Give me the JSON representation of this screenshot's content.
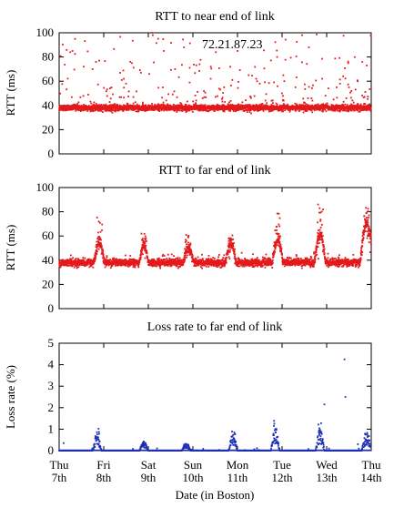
{
  "xlabel": "Date (in Boston)",
  "x_tick_labels": [
    {
      "day": "Thu",
      "date": "7th"
    },
    {
      "day": "Fri",
      "date": "8th"
    },
    {
      "day": "Sat",
      "date": "9th"
    },
    {
      "day": "Sun",
      "date": "10th"
    },
    {
      "day": "Mon",
      "date": "11th"
    },
    {
      "day": "Tue",
      "date": "12th"
    },
    {
      "day": "Wed",
      "date": "13th"
    },
    {
      "day": "Thu",
      "date": "14th"
    }
  ],
  "chart_data": [
    {
      "type": "scatter",
      "title": "RTT to near end of link",
      "ylabel": "RTT (ms)",
      "xlim": [
        0,
        7
      ],
      "ylim": [
        0,
        100
      ],
      "yticks": [
        0,
        20,
        40,
        60,
        80,
        100
      ],
      "color": "#e31a1c",
      "annotation": "72.21.87.23",
      "series": [
        {
          "baseline": 38,
          "spread": 1.2,
          "spike_range": [
            40,
            100
          ],
          "outliers": [
            [
              0.25,
              84
            ],
            [
              0.3,
              85
            ],
            [
              0.55,
              72
            ],
            [
              0.75,
              70
            ],
            [
              0.9,
              77
            ],
            [
              1.45,
              62
            ],
            [
              1.5,
              58
            ],
            [
              2.1,
              98
            ],
            [
              2.22,
              95
            ],
            [
              2.35,
              85
            ],
            [
              2.6,
              70
            ],
            [
              2.8,
              88
            ],
            [
              3.15,
              74
            ],
            [
              3.4,
              62
            ],
            [
              3.7,
              55
            ],
            [
              4.0,
              85
            ],
            [
              4.25,
              65
            ],
            [
              4.5,
              58
            ],
            [
              5.05,
              60
            ],
            [
              5.3,
              55
            ],
            [
              5.45,
              98
            ],
            [
              5.6,
              88
            ],
            [
              5.9,
              62
            ],
            [
              6.3,
              58
            ],
            [
              6.5,
              55
            ],
            [
              6.8,
              76
            ],
            [
              6.9,
              73
            ]
          ]
        }
      ]
    },
    {
      "type": "scatter",
      "title": "RTT to far end of link",
      "ylabel": "RTT (ms)",
      "xlim": [
        0,
        7
      ],
      "ylim": [
        0,
        100
      ],
      "yticks": [
        0,
        20,
        40,
        60,
        80,
        100
      ],
      "color": "#e31a1c",
      "series": [
        {
          "baseline": 38,
          "spread": 1.5,
          "daily_peaks": [
            {
              "center": 0.9,
              "width": 0.12,
              "peak": 53,
              "max_spike": 80
            },
            {
              "center": 1.9,
              "width": 0.1,
              "peak": 52,
              "max_spike": 66
            },
            {
              "center": 2.9,
              "width": 0.12,
              "peak": 50,
              "max_spike": 63
            },
            {
              "center": 3.85,
              "width": 0.12,
              "peak": 53,
              "max_spike": 62
            },
            {
              "center": 4.9,
              "width": 0.12,
              "peak": 57,
              "max_spike": 80
            },
            {
              "center": 5.85,
              "width": 0.12,
              "peak": 62,
              "max_spike": 87
            },
            {
              "center": 6.9,
              "width": 0.15,
              "peak": 70,
              "max_spike": 89
            }
          ]
        }
      ]
    },
    {
      "type": "scatter",
      "title": "Loss rate to far end of link",
      "ylabel": "Loss rate (%)",
      "xlim": [
        0,
        7
      ],
      "ylim": [
        0,
        5
      ],
      "yticks": [
        0,
        1,
        2,
        3,
        4,
        5
      ],
      "color": "#1f2fb5",
      "series": [
        {
          "baseline": 0,
          "daily_peaks": [
            {
              "center": 0.85,
              "width": 0.1,
              "peak": 0.6,
              "max_spike": 1.1
            },
            {
              "center": 1.9,
              "width": 0.1,
              "peak": 0.35,
              "max_spike": 0.45
            },
            {
              "center": 2.85,
              "width": 0.1,
              "peak": 0.25,
              "max_spike": 0.3
            },
            {
              "center": 3.9,
              "width": 0.1,
              "peak": 0.6,
              "max_spike": 1.0
            },
            {
              "center": 4.85,
              "width": 0.1,
              "peak": 0.8,
              "max_spike": 1.4
            },
            {
              "center": 5.85,
              "width": 0.1,
              "peak": 0.8,
              "max_spike": 1.3
            },
            {
              "center": 6.9,
              "width": 0.12,
              "peak": 0.6,
              "max_spike": 1.0
            }
          ],
          "outliers": [
            [
              0.1,
              0.35
            ],
            [
              5.95,
              2.15
            ],
            [
              6.4,
              4.25
            ],
            [
              6.42,
              2.5
            ],
            [
              6.7,
              0.3
            ]
          ]
        }
      ]
    }
  ]
}
